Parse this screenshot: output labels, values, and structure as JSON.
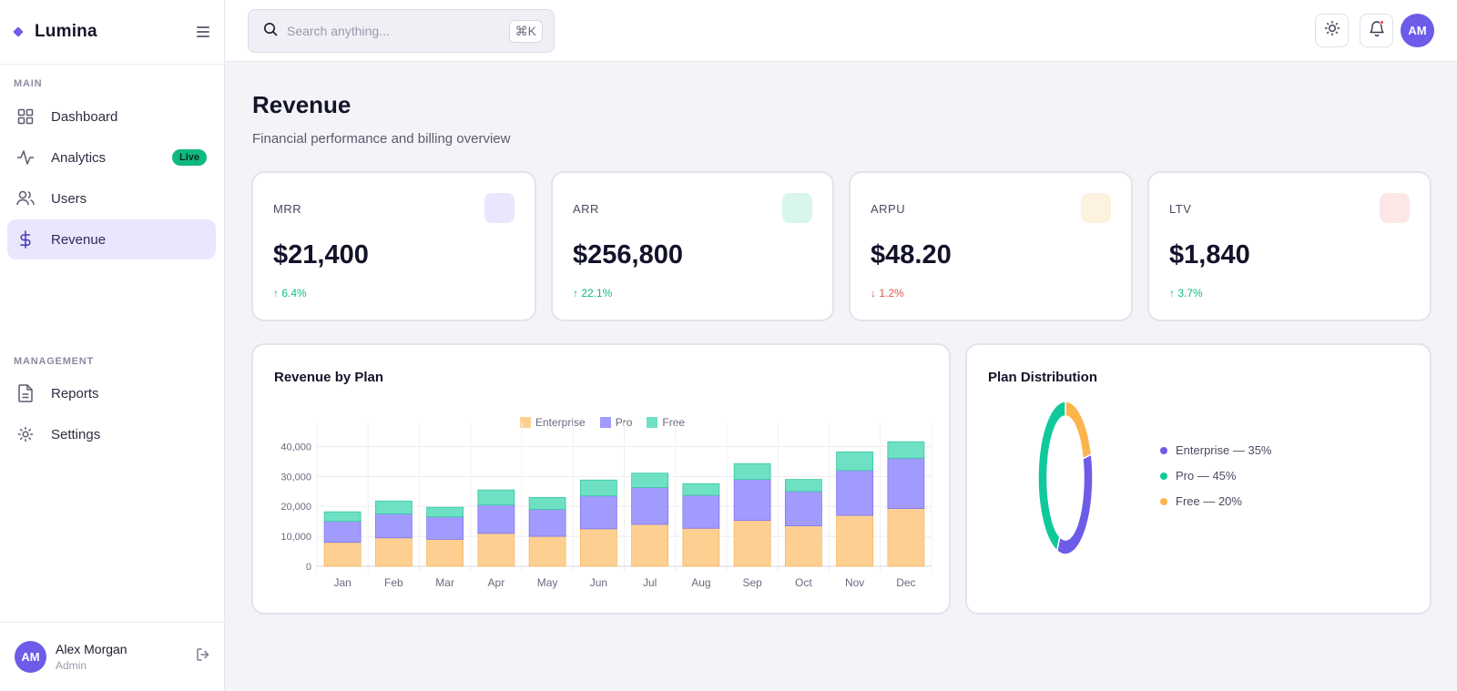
{
  "app": {
    "brand": "Lumina"
  },
  "sidebar": {
    "main_label": "MAIN",
    "main_items": [
      {
        "label": "Dashboard",
        "icon": "grid-icon"
      },
      {
        "label": "Analytics",
        "icon": "activity-icon",
        "badge": "Live"
      },
      {
        "label": "Users",
        "icon": "users-icon"
      },
      {
        "label": "Revenue",
        "icon": "dollar-icon",
        "active": true
      }
    ],
    "management_label": "MANAGEMENT",
    "management_items": [
      {
        "label": "Reports",
        "icon": "file-text-icon"
      },
      {
        "label": "Settings",
        "icon": "gear-icon"
      }
    ],
    "user": {
      "initials": "AM",
      "name": "Alex Morgan",
      "role": "Admin"
    }
  },
  "topbar": {
    "search_placeholder": "Search anything...",
    "shortcut": "⌘K",
    "avatar_initials": "AM"
  },
  "page": {
    "title": "Revenue",
    "subtitle": "Financial performance and billing overview"
  },
  "kpis": [
    {
      "label": "MRR",
      "value": "$21,400",
      "change": "↑ 6.4%",
      "direction": "up",
      "chip_color": "#e9e6fd"
    },
    {
      "label": "ARR",
      "value": "$256,800",
      "change": "↑ 22.1%",
      "direction": "up",
      "chip_color": "#d9f6ee"
    },
    {
      "label": "ARPU",
      "value": "$48.20",
      "change": "↓ 1.2%",
      "direction": "down",
      "chip_color": "#fdf1e0"
    },
    {
      "label": "LTV",
      "value": "$1,840",
      "change": "↑ 3.7%",
      "direction": "up",
      "chip_color": "#fde6e6"
    }
  ],
  "colors": {
    "accent": "#6c5ce7",
    "enterprise": "#fdd092",
    "pro": "#a29bfe",
    "free": "#6ee0c4",
    "pie_enterprise": "#6c5ce7",
    "pie_pro": "#10c99a",
    "pie_free": "#fdb44b"
  },
  "revenue_chart": {
    "title": "Revenue by Plan",
    "chart_data": {
      "type": "bar",
      "stacked": true,
      "categories": [
        "Jan",
        "Feb",
        "Mar",
        "Apr",
        "May",
        "Jun",
        "Jul",
        "Aug",
        "Sep",
        "Oct",
        "Nov",
        "Dec"
      ],
      "series": [
        {
          "name": "Enterprise",
          "values": [
            8000,
            9500,
            9000,
            11000,
            10000,
            12500,
            14000,
            12700,
            15300,
            13500,
            17000,
            19300
          ]
        },
        {
          "name": "Pro",
          "values": [
            7000,
            8000,
            7500,
            9500,
            9000,
            11000,
            12300,
            11000,
            13700,
            11500,
            15000,
            16800
          ]
        },
        {
          "name": "Free",
          "values": [
            3200,
            4300,
            3200,
            5000,
            4000,
            5300,
            4800,
            3900,
            5300,
            4000,
            6200,
            5500
          ]
        }
      ],
      "yticks": [
        "0",
        "10,000",
        "20,000",
        "30,000",
        "40,000"
      ],
      "ylim": [
        0,
        45000
      ],
      "grid": true,
      "legend": "top-center"
    }
  },
  "distribution_chart": {
    "title": "Plan Distribution",
    "chart_data": {
      "type": "pie",
      "donut": true,
      "labels": [
        "Enterprise",
        "Pro",
        "Free"
      ],
      "values": [
        35,
        45,
        20
      ]
    },
    "legend": [
      "Enterprise — 35%",
      "Pro — 45%",
      "Free — 20%"
    ]
  }
}
